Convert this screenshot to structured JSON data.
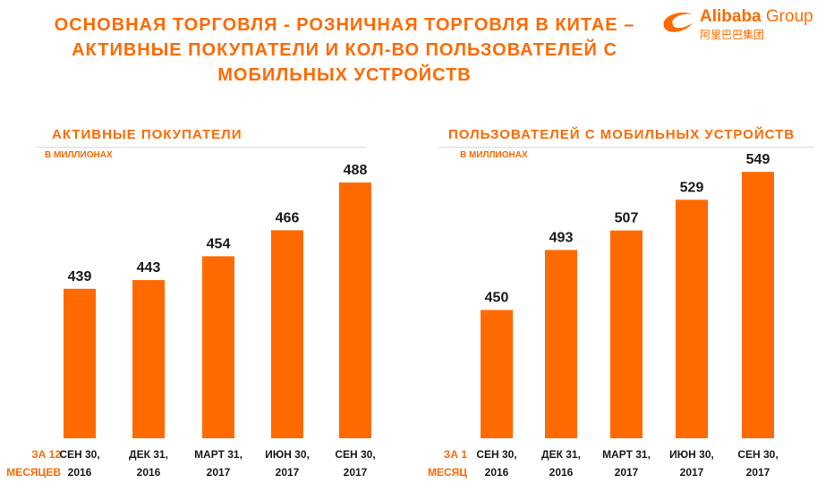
{
  "title_lines": [
    "ОСНОВНАЯ ТОРГОВЛЯ - РОЗНИЧНАЯ ТОРГОВЛЯ В КИТАЕ –",
    "АКТИВНЫЕ ПОКУПАТЕЛИ И КОЛ-ВО ПОЛЬЗОВАТЕЛЕЙ С",
    "МОБИЛЬНЫХ УСТРОЙСТВ"
  ],
  "logo": {
    "name": "Alibaba",
    "suffix": "Group",
    "subtitle": "阿里巴巴集团",
    "color": "#ff6a00"
  },
  "colors": {
    "accent": "#ff6a00",
    "label": "#1a1a1a"
  },
  "chart_data": [
    {
      "type": "bar",
      "title": "АКТИВНЫЕ ПОКУПАТЕЛИ",
      "unit": "В МИЛЛИОНАХ",
      "period_label": [
        "ЗА 12",
        "МЕСЯЦЕВ"
      ],
      "categories": [
        [
          "СЕН 30,",
          "2016"
        ],
        [
          "ДЕК 31,",
          "2016"
        ],
        [
          "МАРТ 31,",
          "2017"
        ],
        [
          "ИЮН 30,",
          "2017"
        ],
        [
          "СЕН 30,",
          "2017"
        ]
      ],
      "values": [
        439,
        443,
        454,
        466,
        488
      ],
      "ylim": [
        370,
        500
      ]
    },
    {
      "type": "bar",
      "title": "ПОЛЬЗОВАТЕЛЕЙ С МОБИЛЬНЫХ УСТРОЙСТВ",
      "unit": "В МИЛЛИОНАХ",
      "period_label": [
        "ЗА 1",
        "МЕСЯЦ"
      ],
      "categories": [
        [
          "СЕН 30,",
          "2016"
        ],
        [
          "ДЕК 31,",
          "2016"
        ],
        [
          "МАРТ 31,",
          "2017"
        ],
        [
          "ИЮН 30,",
          "2017"
        ],
        [
          "СЕН 30,",
          "2017"
        ]
      ],
      "values": [
        450,
        493,
        507,
        529,
        549
      ],
      "ylim": [
        358,
        560
      ]
    }
  ]
}
